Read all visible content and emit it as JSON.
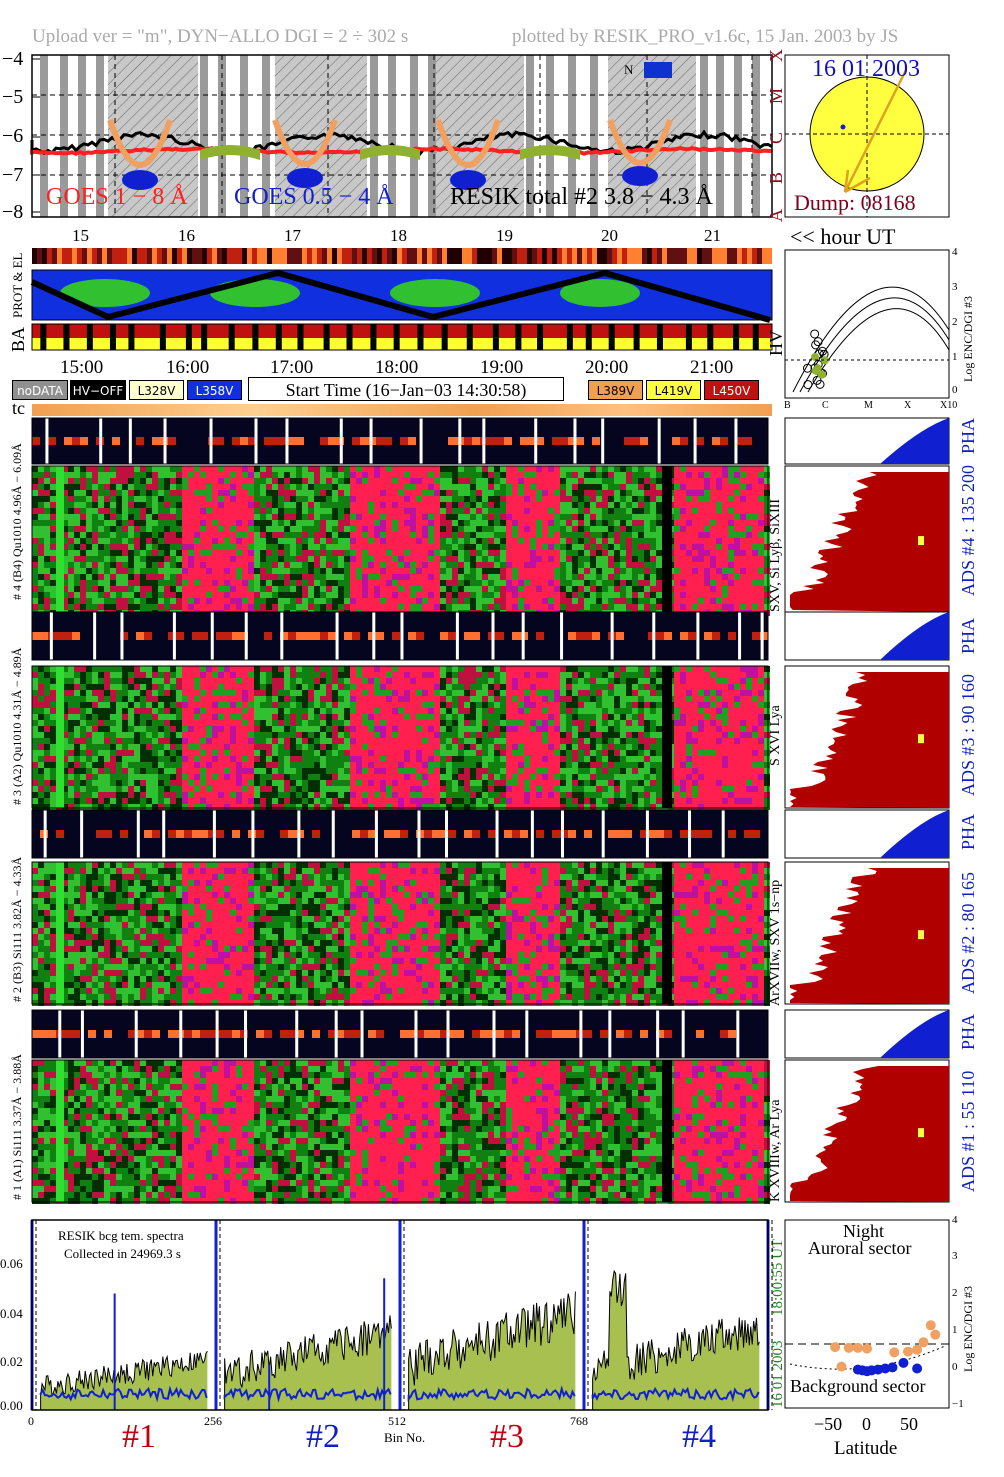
{
  "header": {
    "left": "Upload ver = \"m\", DYN−ALLO DGI =   2 ÷ 302 s",
    "right": "plotted by RESIK_PRO_v1.6c, 15 Jan. 2003 by JS",
    "text_color": "#aaaaaa"
  },
  "goes_panel": {
    "y_ticks": [
      "−4",
      "−5",
      "−6",
      "−7",
      "−8"
    ],
    "class_letters": [
      "X",
      "M",
      "C",
      "B",
      "A"
    ],
    "label_goes_long": "GOES 1 − 8 Å",
    "label_goes_short": "GOES 0.5 − 4 Å",
    "label_resik": "RESIK total #2  3.8 − 4.3 Å",
    "n_label": "N",
    "colors": {
      "goes_long": "#ff2020",
      "goes_short": "#1020d0",
      "resik": "#000000",
      "green": "#90b030",
      "orange": "#f0a060",
      "gray": "#a0a0a0"
    }
  },
  "sun_panel": {
    "date": "16 01 2003",
    "dump": "Dump: 08168",
    "colors": {
      "disk": "#ffff40",
      "arrow": "#e0a020",
      "date": "#1010c0",
      "dump": "#800020"
    }
  },
  "hour_axis_top": {
    "ticks": [
      "15",
      "16",
      "17",
      "18",
      "19",
      "20",
      "21"
    ],
    "label": "<< hour UT"
  },
  "orbit_panel": {
    "label_prot": "PROT & EL",
    "label_ba": "BA",
    "label_hv": "HV"
  },
  "time_axis": {
    "ticks": [
      "15:00",
      "16:00",
      "17:00",
      "18:00",
      "19:00",
      "20:00",
      "21:00"
    ]
  },
  "legend": {
    "nodata": "noDATA",
    "hvoff": "HV−OFF",
    "l328": "L328V",
    "l358": "L358V",
    "start_time": "Start Time (16−Jan−03 14:30:58)",
    "l389": "L389V",
    "l419": "L419V",
    "l450": "L450V",
    "colors": {
      "nodata": "#909090",
      "hvoff": "#000000",
      "l328": "#ffffd0",
      "l358": "#1030e0",
      "l389": "#f0a050",
      "l419": "#ffff40",
      "l450": "#c01010"
    }
  },
  "tc_label": "tc",
  "small_scatter": {
    "y_title": "Log ENC/DGI #3",
    "y_ticks": [
      "4",
      "3",
      "2",
      "1",
      "0"
    ],
    "x_ticks": [
      "B",
      "C",
      "M",
      "X",
      "X10"
    ]
  },
  "channels": [
    {
      "pha_label": "PHA",
      "ads_label": "ADS #4 :   135 200",
      "ion_label": "SXV, Si Lyβ, SiXIII",
      "left_label": "# 4 (B4)  Qu1010 4.96Å − 6.09Å"
    },
    {
      "pha_label": "PHA",
      "ads_label": "ADS #3 :    90 160",
      "ion_label": "S XVI Lya",
      "left_label": "# 3 (A2)  Qu1010  4.31Å − 4.89Å"
    },
    {
      "pha_label": "PHA",
      "ads_label": "ADS #2 :    80 165",
      "ion_label": "ArXVIIw, SXV 1s−np",
      "left_label": "# 2 (B3)  Si111  3.82Å − 4.33Å"
    },
    {
      "pha_label": "PHA",
      "ads_label": "ADS #1 :    55 110",
      "ion_label": "K XVIIIw, Ar Lya",
      "left_label": "# 1 (A1)  Si111  3.37Å − 3.88Å"
    }
  ],
  "spectrum_panel": {
    "title1": "RESIK bcg tem. spectra",
    "title2": "Collected in 24969.3 s",
    "y_ticks": [
      "0.06",
      "0.04",
      "0.02",
      "0.00"
    ],
    "x_ticks": [
      "0",
      "256",
      "512",
      "768"
    ],
    "x_label": "Bin No.",
    "side_date": "16 01 2003",
    "side_time": "18:00:55 UT",
    "channel_labels": [
      "#1",
      "#2",
      "#3",
      "#4"
    ],
    "channel_colors": [
      "#c00010",
      "#1020c0",
      "#c00010",
      "#1020c0"
    ]
  },
  "latitude_panel": {
    "title1": "Night",
    "title2": "Auroral sector",
    "bottom_label": "Background sector",
    "x_ticks": [
      "−50",
      "0",
      "50"
    ],
    "x_label": "Latitude",
    "y_title": "Log ENC/DGI #3",
    "y_ticks": [
      "4",
      "3",
      "2",
      "1",
      "0",
      "−1"
    ]
  },
  "chart_data": {
    "type": "line",
    "spectrum": {
      "x_range": [
        0,
        1024
      ],
      "y_range": [
        0,
        0.075
      ],
      "channel_boundaries": [
        0,
        256,
        512,
        768,
        1024
      ],
      "mean_level_by_channel": [
        0.018,
        0.028,
        0.035,
        0.03
      ],
      "background_level": 0.006
    },
    "latitude_scatter": {
      "x_range": [
        -90,
        90
      ],
      "y_range": [
        -1,
        4
      ],
      "orange_points": [
        [
          -35,
          0.62
        ],
        [
          -20,
          0.6
        ],
        [
          -10,
          0.6
        ],
        [
          0,
          0.58
        ],
        [
          30,
          0.48
        ],
        [
          45,
          0.5
        ],
        [
          55,
          0.55
        ],
        [
          62,
          0.75
        ],
        [
          70,
          1.2
        ],
        [
          75,
          0.95
        ],
        [
          -28,
          0.1
        ]
      ],
      "blue_points": [
        [
          -10,
          0.02
        ],
        [
          -5,
          0.0
        ],
        [
          0,
          -0.02
        ],
        [
          5,
          0.0
        ],
        [
          12,
          0.02
        ],
        [
          20,
          0.05
        ],
        [
          28,
          0.08
        ],
        [
          40,
          0.2
        ],
        [
          55,
          0.05
        ]
      ]
    }
  }
}
